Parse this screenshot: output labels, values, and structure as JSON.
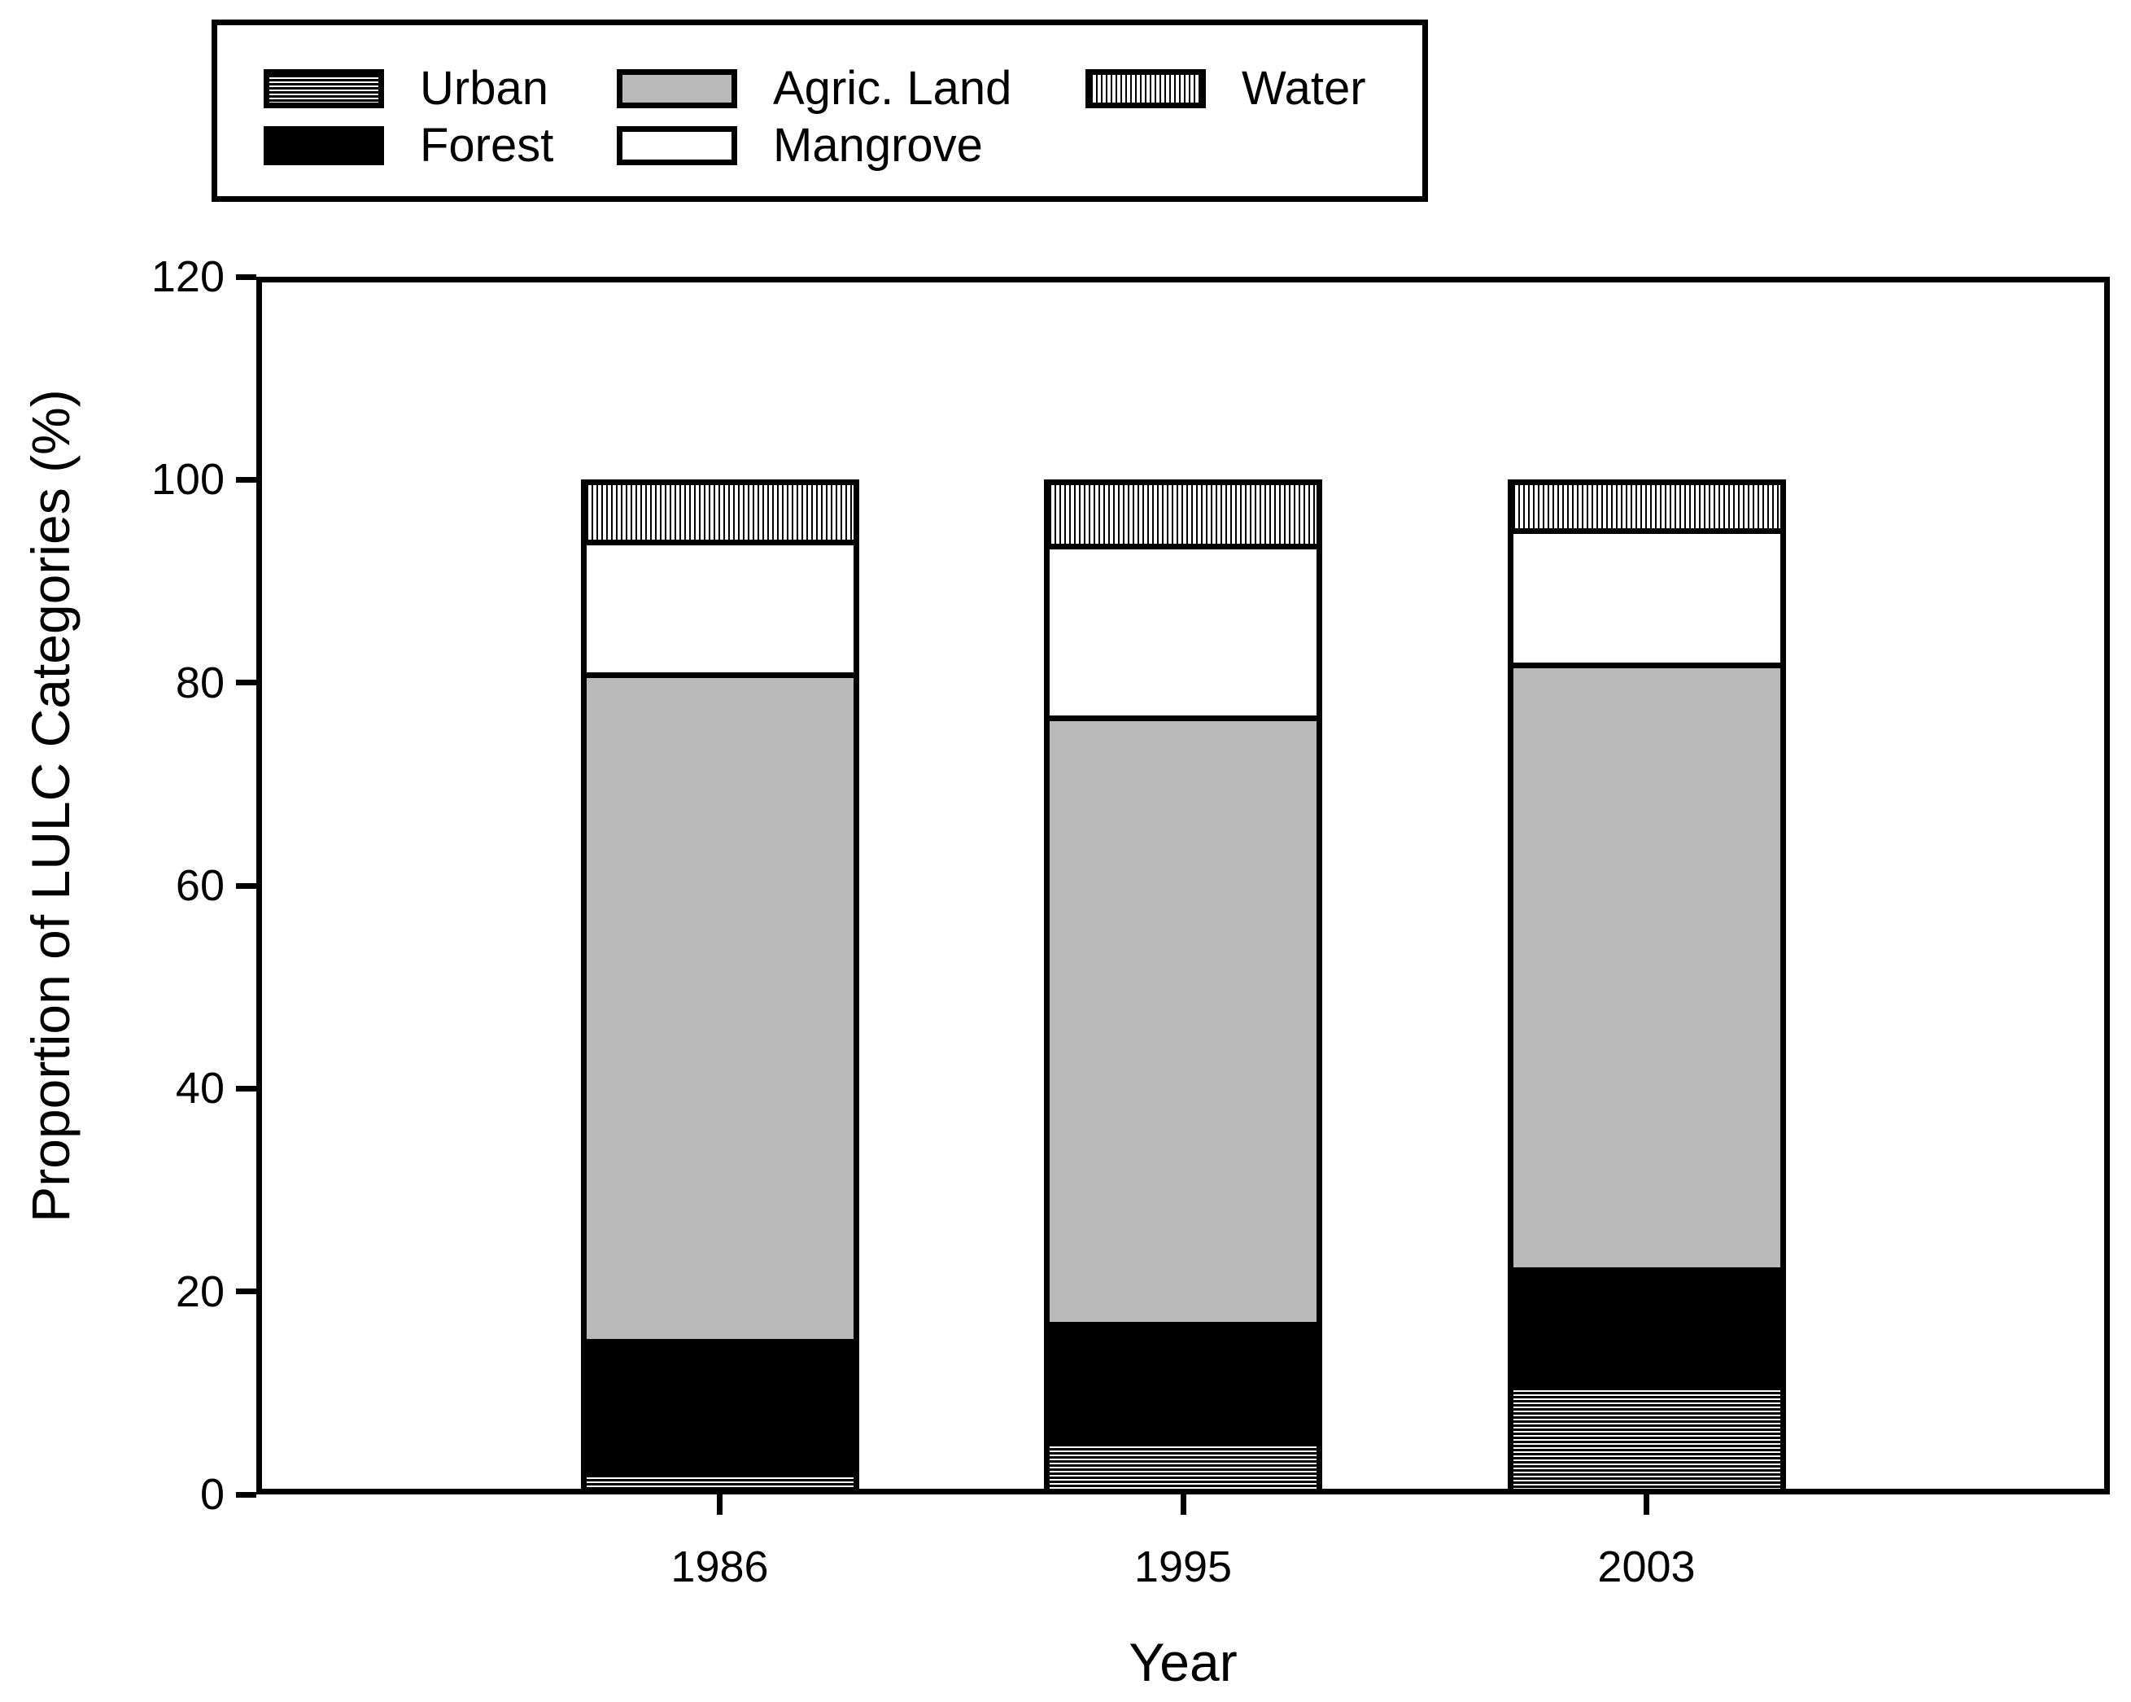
{
  "chart_data": {
    "type": "bar",
    "stacked": true,
    "title": "",
    "xlabel": "Year",
    "ylabel": "Proportion of LULC Categories (%)",
    "categories": [
      "1986",
      "1995",
      "2003"
    ],
    "series": [
      {
        "name": "Urban",
        "pattern": "horizontal-stripes",
        "values": [
          2.5,
          5.5,
          11.1
        ]
      },
      {
        "name": "Forest",
        "pattern": "solid-black",
        "values": [
          12.8,
          11.5,
          11.3
        ]
      },
      {
        "name": "Agric. Land",
        "pattern": "solid-gray",
        "values": [
          65.7,
          59.8,
          59.6
        ]
      },
      {
        "name": "Mangrove",
        "pattern": "solid-white",
        "values": [
          13.1,
          16.9,
          13.2
        ]
      },
      {
        "name": "Water",
        "pattern": "vertical-stripes",
        "values": [
          5.9,
          6.3,
          4.8
        ]
      }
    ],
    "stack_order_bottom_to_top": [
      "Urban",
      "Forest",
      "Agric. Land",
      "Mangrove",
      "Water"
    ],
    "legend": {
      "position": "top-left",
      "rows": [
        [
          "Urban",
          "Agric. Land",
          "Water"
        ],
        [
          "Forest",
          "Mangrove"
        ]
      ]
    },
    "ylim": [
      0,
      120
    ],
    "yticks": [
      0,
      20,
      40,
      60,
      80,
      100,
      120
    ],
    "grid": false,
    "frame": "full-box",
    "colors": {
      "bar_gray": "#b9b9b9",
      "bar_black": "#000000",
      "bar_white": "#ffffff",
      "stroke": "#000000",
      "background": "#ffffff"
    }
  }
}
